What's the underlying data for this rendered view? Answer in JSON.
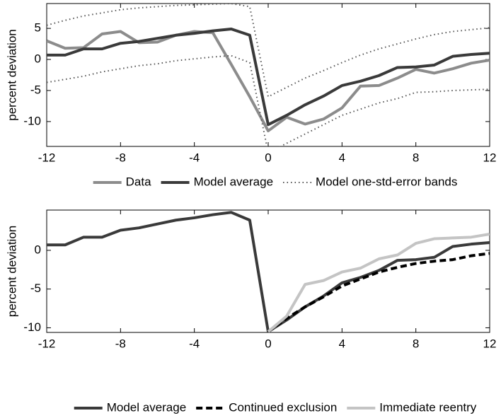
{
  "chart_data": [
    {
      "type": "line",
      "ylabel": "percent deviation",
      "x": [
        -12,
        -11,
        -10,
        -9,
        -8,
        -7,
        -6,
        -5,
        -4,
        -3,
        -2,
        -1,
        0,
        1,
        2,
        3,
        4,
        5,
        6,
        7,
        8,
        9,
        10,
        11,
        12
      ],
      "xlim": [
        -12,
        12
      ],
      "xticks": [
        -12,
        -8,
        -4,
        0,
        4,
        8,
        12
      ],
      "ylim": [
        -14,
        9
      ],
      "yticks": [
        -10,
        -5,
        0,
        5
      ],
      "series": [
        {
          "name": "Data",
          "color": "#8c8c8c",
          "style": "solid",
          "values": [
            3,
            1.8,
            1.9,
            4.1,
            4.5,
            2.7,
            2.8,
            3.9,
            4.5,
            4.3,
            -0.8,
            -6,
            -11.5,
            -9.3,
            -10.4,
            -9.6,
            -7.8,
            -4.3,
            -4.2,
            -3,
            -1.6,
            -2.2,
            -1.5,
            -0.6,
            -0.1
          ]
        },
        {
          "name": "Model average",
          "color": "#3a3a3a",
          "style": "solid",
          "values": [
            0.7,
            0.7,
            1.7,
            1.7,
            2.6,
            2.9,
            3.4,
            3.9,
            4.2,
            4.6,
            4.9,
            3.9,
            -10.5,
            -9,
            -7.3,
            -5.9,
            -4.2,
            -3.5,
            -2.6,
            -1.3,
            -1.2,
            -0.9,
            0.5,
            0.8,
            1.0
          ]
        },
        {
          "name": "Model one-std-error bands",
          "color": "#555555",
          "style": "dotted",
          "upper": [
            5.5,
            6.3,
            7,
            7.5,
            8,
            8.3,
            8.5,
            8.7,
            8.8,
            8.9,
            9,
            8.5,
            -6,
            -4.5,
            -3,
            -1.8,
            -0.5,
            0.7,
            1.7,
            2.5,
            3.3,
            4,
            4.5,
            4.8,
            5.1
          ],
          "lower": [
            -3.7,
            -3.2,
            -2.7,
            -2,
            -1.5,
            -1,
            -0.7,
            -0.2,
            0.1,
            0.4,
            0.6,
            -0.5,
            -15,
            -13.5,
            -12,
            -10.5,
            -9,
            -8,
            -7,
            -6.3,
            -5.3,
            -5.2,
            -5,
            -4.9,
            -4.8
          ]
        }
      ]
    },
    {
      "type": "line",
      "ylabel": "percent deviation",
      "x": [
        -12,
        -11,
        -10,
        -9,
        -8,
        -7,
        -6,
        -5,
        -4,
        -3,
        -2,
        -1,
        0,
        1,
        2,
        3,
        4,
        5,
        6,
        7,
        8,
        9,
        10,
        11,
        12
      ],
      "xlim": [
        -12,
        12
      ],
      "xticks": [
        -12,
        -8,
        -4,
        0,
        4,
        8,
        12
      ],
      "ylim": [
        -10.6,
        5.2
      ],
      "yticks": [
        -10,
        -5,
        0
      ],
      "series": [
        {
          "name": "Model average",
          "color": "#3a3a3a",
          "style": "solid",
          "values": [
            0.7,
            0.7,
            1.7,
            1.7,
            2.6,
            2.9,
            3.4,
            3.9,
            4.2,
            4.6,
            4.9,
            3.9,
            -10.5,
            -9,
            -7.3,
            -5.9,
            -4.2,
            -3.5,
            -2.6,
            -1.3,
            -1.2,
            -0.9,
            0.5,
            0.8,
            1.0
          ]
        },
        {
          "name": "Continued exclusion",
          "color": "#000000",
          "style": "dashed",
          "values": [
            null,
            null,
            null,
            null,
            null,
            null,
            null,
            null,
            null,
            null,
            null,
            null,
            -10.5,
            -8.8,
            -7.3,
            -6.0,
            -4.6,
            -3.7,
            -2.8,
            -2.2,
            -1.7,
            -1.4,
            -1.2,
            -0.7,
            -0.4
          ]
        },
        {
          "name": "Immediate reentry",
          "color": "#c4c4c4",
          "style": "solid",
          "values": [
            null,
            null,
            null,
            null,
            null,
            null,
            null,
            null,
            null,
            null,
            null,
            null,
            -10.5,
            -8.5,
            -4.4,
            -3.9,
            -2.8,
            -2.3,
            -1.1,
            -0.6,
            0.9,
            1.5,
            1.6,
            1.7,
            2.1
          ]
        }
      ]
    }
  ]
}
